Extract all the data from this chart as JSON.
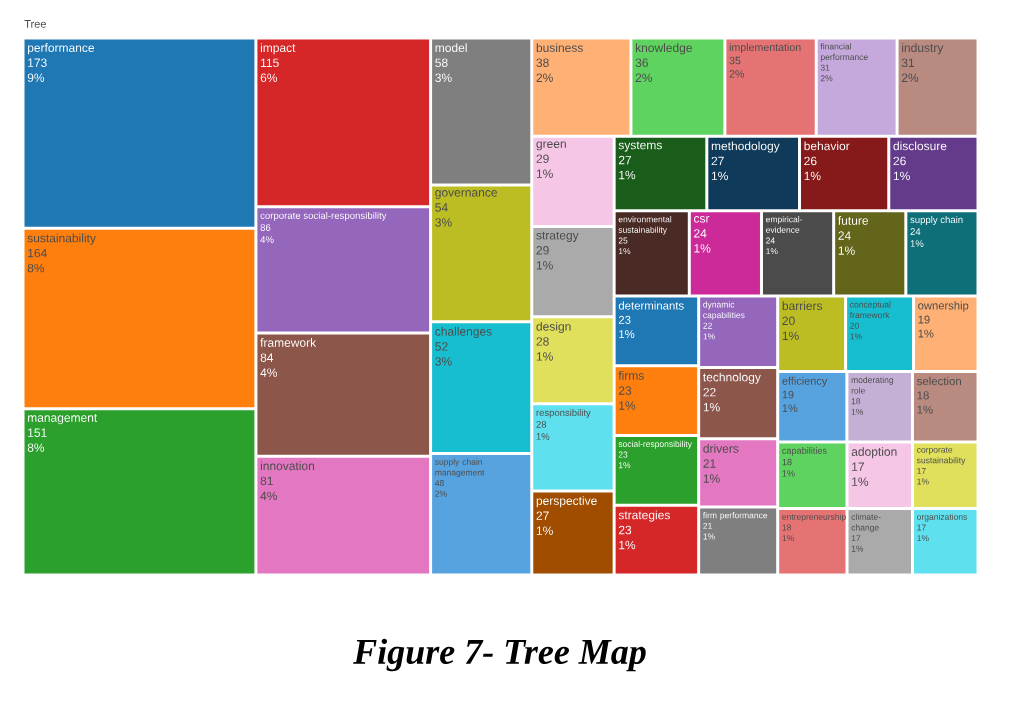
{
  "chart_data": {
    "type": "other",
    "title": "Tree",
    "data_labels": true,
    "annotations": [
      "Figure 7- Tree Map",
      {
        "text": "9%",
        "x": "performance"
      },
      {
        "text": "8%",
        "x": "sustainability"
      },
      {
        "text": "8%",
        "x": "management"
      },
      {
        "text": "6%",
        "x": "impact"
      },
      {
        "text": "4%",
        "x": "corporate social-responsibility"
      },
      {
        "text": "4%",
        "x": "framework"
      },
      {
        "text": "4%",
        "x": "innovation"
      },
      {
        "text": "3%",
        "x": "model"
      },
      {
        "text": "3%",
        "x": "governance"
      },
      {
        "text": "3%",
        "x": "challenges"
      },
      {
        "text": "2%",
        "x": "supply chain management"
      },
      {
        "text": "2%",
        "x": "business"
      },
      {
        "text": "2%",
        "x": "knowledge"
      },
      {
        "text": "2%",
        "x": "implementation"
      },
      {
        "text": "2%",
        "x": "financial performance"
      },
      {
        "text": "2%",
        "x": "industry"
      },
      {
        "text": "1%",
        "x": "green"
      },
      {
        "text": "1%",
        "x": "strategy"
      },
      {
        "text": "1%",
        "x": "design"
      },
      {
        "text": "1%",
        "x": "responsibility"
      },
      {
        "text": "1%",
        "x": "perspective"
      },
      {
        "text": "1%",
        "x": "systems"
      },
      {
        "text": "1%",
        "x": "methodology"
      },
      {
        "text": "1%",
        "x": "behavior"
      },
      {
        "text": "1%",
        "x": "disclosure"
      },
      {
        "text": "1%",
        "x": "environmental sustainability"
      },
      {
        "text": "1%",
        "x": "csr"
      },
      {
        "text": "1%",
        "x": "empirical-evidence"
      },
      {
        "text": "1%",
        "x": "future"
      },
      {
        "text": "1%",
        "x": "supply chain"
      },
      {
        "text": "1%",
        "x": "determinants"
      },
      {
        "text": "1%",
        "x": "firms"
      },
      {
        "text": "1%",
        "x": "social-responsibility"
      },
      {
        "text": "1%",
        "x": "strategies"
      },
      {
        "text": "1%",
        "x": "dynamic capabilities"
      },
      {
        "text": "1%",
        "x": "technology"
      },
      {
        "text": "1%",
        "x": "drivers"
      },
      {
        "text": "1%",
        "x": "firm performance"
      },
      {
        "text": "1%",
        "x": "barriers"
      },
      {
        "text": "1%",
        "x": "conceptual framework"
      },
      {
        "text": "1%",
        "x": "ownership"
      },
      {
        "text": "1%",
        "x": "efficiency"
      },
      {
        "text": "1%",
        "x": "moderating role"
      },
      {
        "text": "1%",
        "x": "selection"
      },
      {
        "text": "1%",
        "x": "capabilities"
      },
      {
        "text": "1%",
        "x": "entrepreneurship"
      },
      {
        "text": "1%",
        "x": "adoption"
      },
      {
        "text": "1%",
        "x": "corporate sustainability"
      },
      {
        "text": "1%",
        "x": "climate-change"
      },
      {
        "text": "1%",
        "x": "organizations"
      }
    ],
    "categories": [
      "performance",
      "sustainability",
      "management",
      "impact",
      "corporate social-responsibility",
      "framework",
      "innovation",
      "model",
      "governance",
      "challenges",
      "supply chain management",
      "business",
      "knowledge",
      "implementation",
      "financial performance",
      "industry",
      "green",
      "strategy",
      "design",
      "responsibility",
      "perspective",
      "systems",
      "methodology",
      "behavior",
      "disclosure",
      "environmental sustainability",
      "csr",
      "empirical-evidence",
      "future",
      "supply chain",
      "determinants",
      "firms",
      "social-responsibility",
      "strategies",
      "dynamic capabilities",
      "technology",
      "drivers",
      "firm performance",
      "barriers",
      "conceptual framework",
      "ownership",
      "efficiency",
      "moderating role",
      "selection",
      "capabilities",
      "entrepreneurship",
      "adoption",
      "corporate sustainability",
      "climate-change",
      "organizations"
    ],
    "values": [
      173,
      164,
      151,
      115,
      86,
      84,
      81,
      58,
      54,
      52,
      48,
      38,
      36,
      35,
      31,
      31,
      29,
      29,
      28,
      28,
      27,
      27,
      27,
      26,
      26,
      25,
      24,
      24,
      24,
      24,
      23,
      23,
      23,
      23,
      22,
      22,
      21,
      21,
      20,
      20,
      19,
      19,
      18,
      18,
      18,
      18,
      17,
      17,
      17,
      17
    ],
    "colors": [
      "#1f77b4",
      "#ff7f0e",
      "#2ca02c",
      "#d62728",
      "#9467bd",
      "#8c564b",
      "#e377c2",
      "#7f7f7f",
      "#bcbd22",
      "#17becf",
      "#57a3e0",
      "#ffb074",
      "#5fd35f",
      "#e57373",
      "#c5a9dc",
      "#b88a80",
      "#f5c6e6",
      "#aaaaaa",
      "#e0e05c",
      "#5fe0ee",
      "#a04d00",
      "#1a5c1a",
      "#0f3a5a",
      "#861a1a",
      "#643a8a",
      "#4a2a24",
      "#cc2a99",
      "#4b4b4b",
      "#62651a",
      "#0e6f78",
      "#1f77b4",
      "#ff7f0e",
      "#2ca02c",
      "#d62728",
      "#9467bd",
      "#8c564b",
      "#e377c2",
      "#7f7f7f",
      "#bcbd22",
      "#17becf",
      "#ffb074",
      "#57a3e0",
      "#c5b0d5",
      "#b88a80",
      "#5fd35f",
      "#e57373",
      "#f5c6e6",
      "#e0e05c",
      "#aaaaaa",
      "#5fe0ee"
    ]
  }
}
